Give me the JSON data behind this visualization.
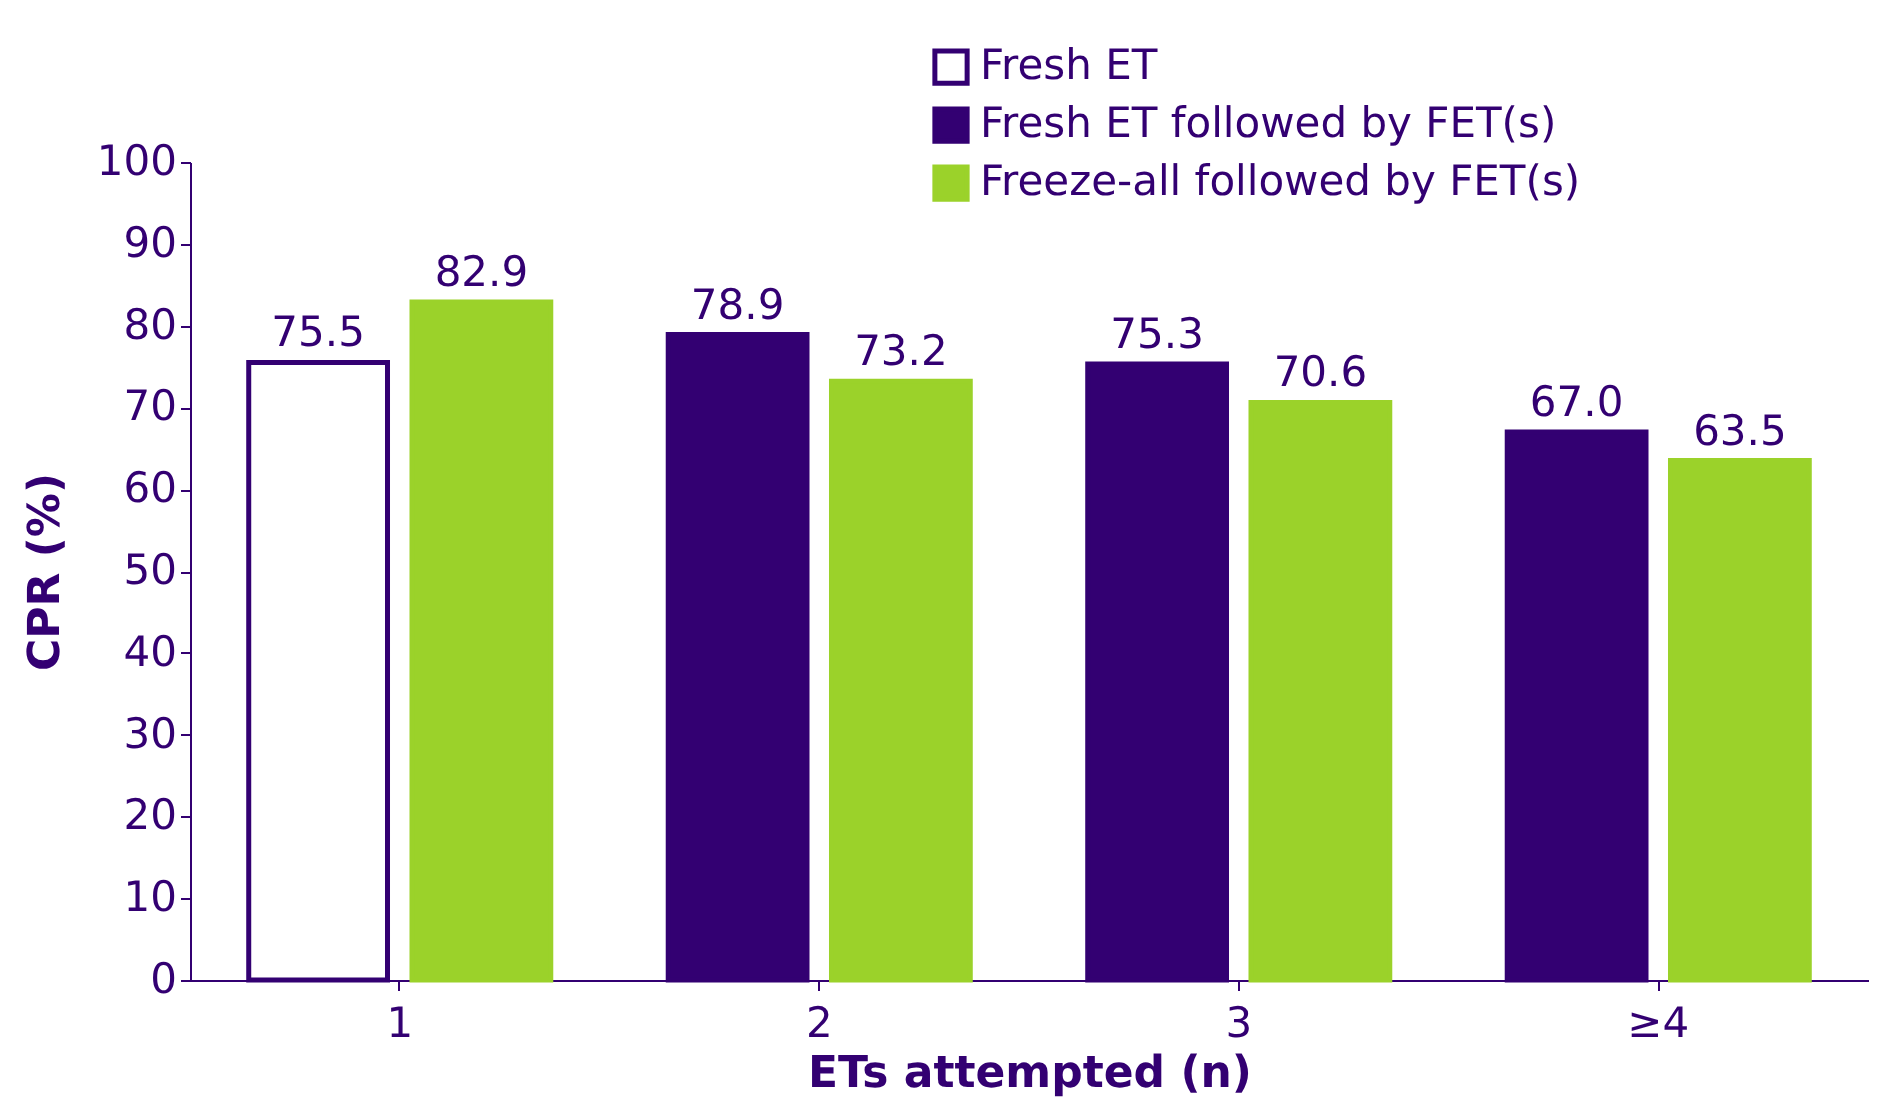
{
  "chart_data": {
    "type": "bar",
    "xlabel": "ETs attempted (n)",
    "ylabel": "CPR (%)",
    "categories": [
      "1",
      "2",
      "3",
      "≥4"
    ],
    "series": [
      {
        "name": "Fresh ET",
        "color": "#ffffff",
        "values": [
          75.5,
          null,
          null,
          null
        ],
        "value_labels": [
          "75.5",
          null,
          null,
          null
        ]
      },
      {
        "name": "Fresh ET followed by FET(s)",
        "color": "#330072",
        "values": [
          null,
          78.9,
          75.3,
          67.0
        ],
        "value_labels": [
          null,
          "78.9",
          "75.3",
          "67.0"
        ]
      },
      {
        "name": "Freeze-all followed by FET(s)",
        "color": "#9bd22a",
        "values": [
          82.9,
          73.2,
          70.6,
          63.5
        ],
        "value_labels": [
          "82.9",
          "73.2",
          "70.6",
          "63.5"
        ]
      }
    ],
    "ylim": [
      0,
      100
    ],
    "yticks": [
      0,
      10,
      20,
      30,
      40,
      50,
      60,
      70,
      80,
      90,
      100
    ],
    "grid": false,
    "legend": "top right"
  }
}
